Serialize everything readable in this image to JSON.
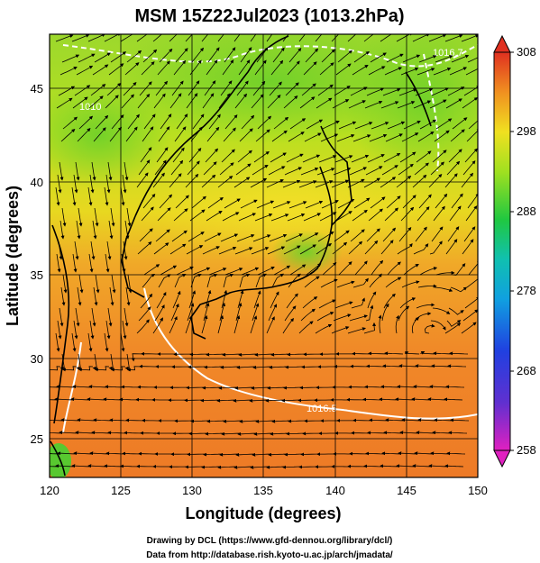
{
  "title": "MSM 15Z22Jul2023 (1013.2hPa)",
  "x_axis": {
    "label": "Longitude (degrees)",
    "ticks": [
      "120",
      "125",
      "130",
      "135",
      "140",
      "145",
      "150"
    ],
    "range": [
      120,
      150
    ]
  },
  "y_axis": {
    "label": "Latitude  (degrees)",
    "ticks": [
      "25",
      "30",
      "35",
      "40",
      "45"
    ],
    "range": [
      22.4,
      47.6
    ]
  },
  "colorbar": {
    "ticks": [
      "308",
      "298",
      "288",
      "278",
      "268",
      "258"
    ],
    "range": [
      258,
      308
    ],
    "colors": [
      "#e020c0",
      "#3040d0",
      "#10c0d0",
      "#20c040",
      "#f0e020",
      "#f08020",
      "#e03020"
    ]
  },
  "isobar_labels": [
    "1016.7",
    "1016.5",
    "1010"
  ],
  "credits": [
    "Drawing by DCL (https://www.gfd-dennou.org/library/dcl/)",
    "Data from http://database.rish.kyoto-u.ac.jp/arch/jmadata/"
  ]
}
